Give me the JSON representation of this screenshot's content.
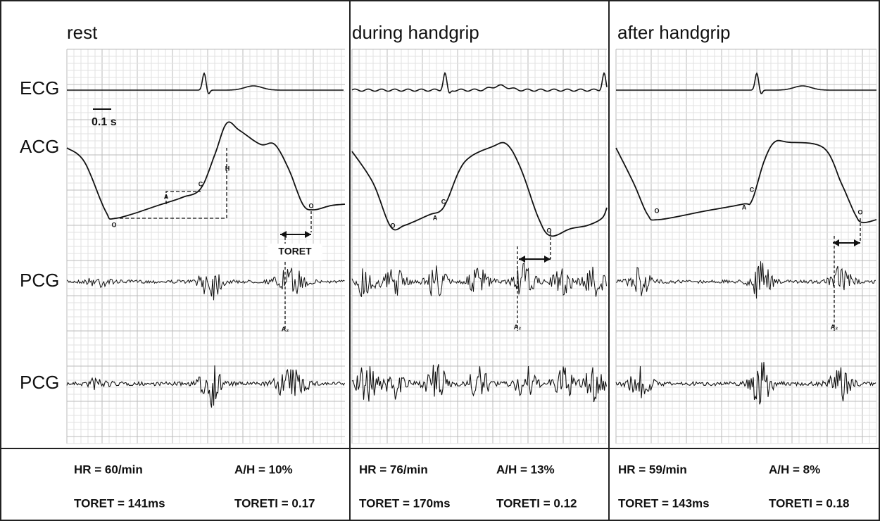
{
  "panels": [
    {
      "title": "rest",
      "points": [
        "O",
        "A",
        "C",
        "H",
        "O",
        "A₂"
      ]
    },
    {
      "title": "during handgrip",
      "points": [
        "O",
        "A",
        "C",
        "O",
        "A₂"
      ]
    },
    {
      "title": "after handgrip",
      "points": [
        "O",
        "A",
        "C",
        "O",
        "A₂"
      ]
    }
  ],
  "trace_labels": [
    "ECG",
    "ACG",
    "PCG",
    "PCG"
  ],
  "scale_bar": "0.1 s",
  "annotation": "TORET",
  "table": {
    "rows": [
      [
        "HR = 60/min",
        "A/H = 10%",
        "HR = 76/min",
        "A/H = 13%",
        "HR = 59/min",
        "A/H = 8%"
      ],
      [
        "TORET = 141ms",
        "TORETI = 0.17",
        "TORET = 170ms",
        "TORETI = 0.12",
        "TORET = 143ms",
        "TORETI = 0.18"
      ]
    ]
  }
}
